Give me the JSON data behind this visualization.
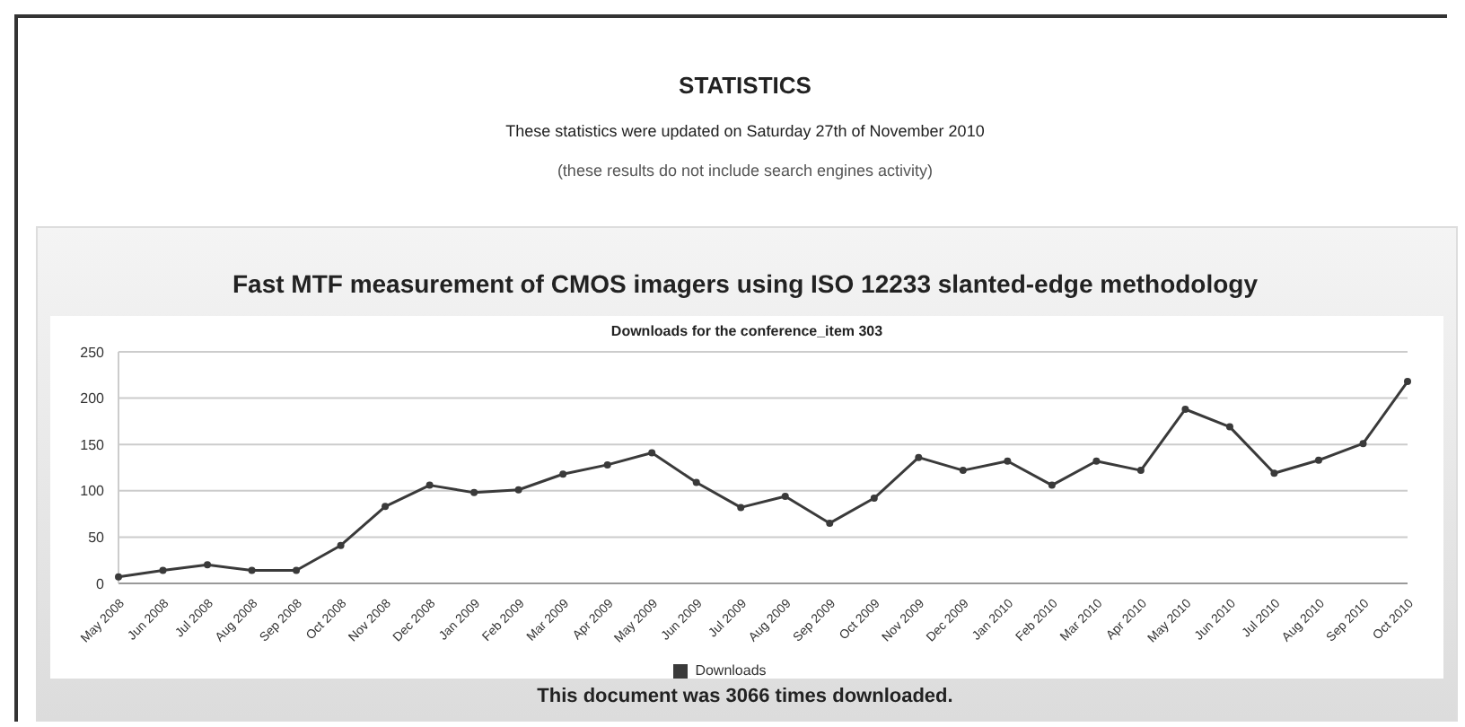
{
  "chart_data": {
    "type": "line",
    "title": "Downloads for the conference_item 303",
    "annotations": [
      "STATISTICS",
      "These statistics were updated on Saturday 27th of November 2010",
      "(these results do not include search engines activity)",
      "Fast MTF measurement of CMOS imagers using ISO 12233 slanted-edge methodology",
      "This document was 3066 times downloaded."
    ],
    "categories": [
      "May 2008",
      "Jun 2008",
      "Jul 2008",
      "Aug 2008",
      "Sep 2008",
      "Oct 2008",
      "Nov 2008",
      "Dec 2008",
      "Jan 2009",
      "Feb 2009",
      "Mar 2009",
      "Apr 2009",
      "May 2009",
      "Jun 2009",
      "Jul 2009",
      "Aug 2009",
      "Sep 2009",
      "Oct 2009",
      "Nov 2009",
      "Dec 2009",
      "Jan 2010",
      "Feb 2010",
      "Mar 2010",
      "Apr 2010",
      "May 2010",
      "Jun 2010",
      "Jul 2010",
      "Aug 2010",
      "Sep 2010",
      "Oct 2010"
    ],
    "series": [
      {
        "name": "Downloads",
        "color": "#3a3a3a",
        "values": [
          7,
          14,
          20,
          14,
          14,
          41,
          83,
          106,
          98,
          101,
          118,
          128,
          141,
          109,
          82,
          94,
          65,
          92,
          136,
          122,
          132,
          106,
          132,
          122,
          188,
          169,
          119,
          133,
          151,
          218
        ]
      }
    ],
    "ylim": [
      0,
      250
    ],
    "yticks": [
      0,
      50,
      100,
      150,
      200,
      250
    ],
    "grid": "y",
    "legend": "bottom",
    "marker": "circle",
    "line_style": "solid"
  }
}
